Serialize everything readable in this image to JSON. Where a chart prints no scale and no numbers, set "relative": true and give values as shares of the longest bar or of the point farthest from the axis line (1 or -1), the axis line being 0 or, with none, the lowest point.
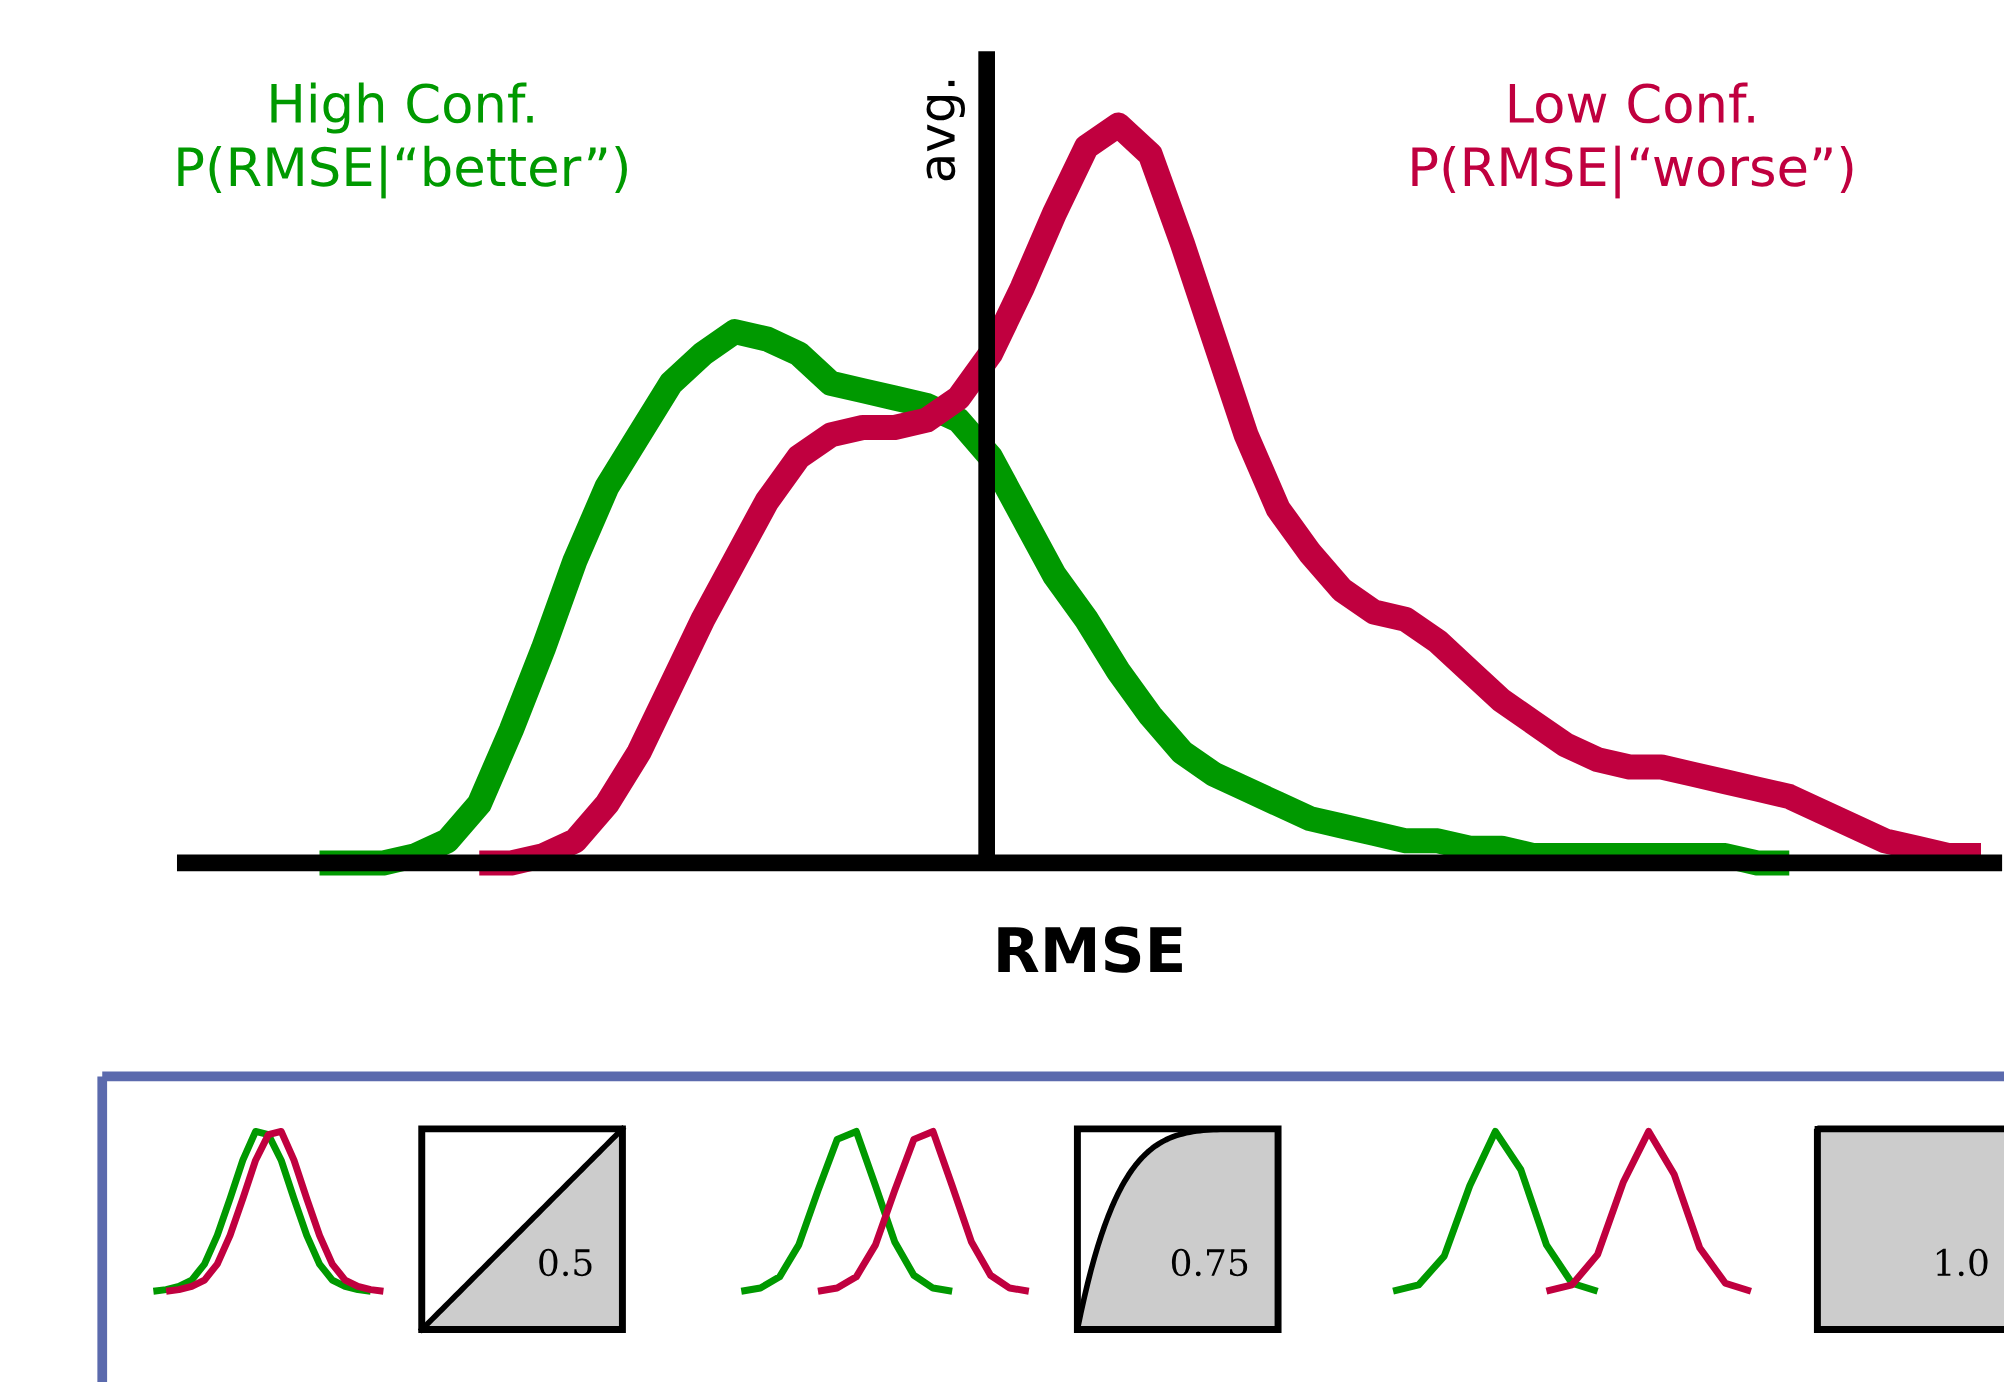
{
  "chart_data": [
    {
      "type": "line",
      "relative": true,
      "xlabel": "RMSE",
      "tick_labels": false,
      "annotations": [
        "avg."
      ],
      "categories": [
        null,
        null,
        null,
        null,
        null,
        null,
        null,
        null,
        null,
        null,
        null,
        null,
        null,
        null,
        null,
        null,
        null,
        null,
        null,
        null,
        null,
        null,
        null,
        null,
        null,
        null,
        null,
        null,
        null,
        null,
        null,
        null,
        null,
        null,
        null,
        null,
        null,
        null,
        null,
        null,
        null,
        null,
        null,
        null,
        null,
        null,
        null,
        null,
        null,
        null,
        null,
        null,
        null
      ],
      "series": [
        {
          "name": "High Conf.\nP(RMSE|“better”)",
          "color": "#009900",
          "values": [
            0,
            0,
            0.0,
            0.01,
            0.03,
            0.08,
            0.18,
            0.29,
            0.41,
            0.51,
            0.58,
            0.65,
            0.69,
            0.72,
            0.71,
            0.69,
            0.65,
            0.64,
            0.63,
            0.62,
            0.6,
            0.55,
            0.47,
            0.39,
            0.33,
            0.26,
            0.2,
            0.15,
            0.12,
            0.1,
            0.08,
            0.06,
            0.05,
            0.04,
            0.03,
            0.03,
            0.02,
            0.02,
            0.01,
            0.01,
            0.01,
            0.01,
            0.01,
            0.01,
            0.01,
            0.0,
            0.0,
            null,
            null,
            null,
            null,
            null,
            null
          ]
        },
        {
          "name": "Low Conf.\nP(RMSE|“worse”)",
          "color": "#c0003f",
          "values": [
            null,
            null,
            null,
            null,
            null,
            0,
            0.0,
            0.01,
            0.03,
            0.08,
            0.15,
            0.24,
            0.33,
            0.41,
            0.49,
            0.55,
            0.58,
            0.59,
            0.59,
            0.6,
            0.63,
            0.69,
            0.78,
            0.88,
            0.97,
            1.0,
            0.96,
            0.84,
            0.71,
            0.58,
            0.48,
            0.42,
            0.37,
            0.34,
            0.33,
            0.3,
            0.26,
            0.22,
            0.19,
            0.16,
            0.14,
            0.13,
            0.13,
            0.12,
            0.11,
            0.1,
            0.09,
            0.07,
            0.05,
            0.03,
            0.02,
            0.01,
            0.01
          ]
        }
      ]
    },
    {
      "type": "line",
      "relative": true,
      "tick_labels": false,
      "categories": [
        null,
        null,
        null,
        null,
        null,
        null,
        null,
        null,
        null,
        null,
        null,
        null,
        null,
        null,
        null,
        null,
        null,
        null,
        null
      ],
      "series": [
        {
          "color": "#009900",
          "values": [
            0,
            0.01,
            0.03,
            0.07,
            0.17,
            0.35,
            0.58,
            0.82,
            1.0,
            0.98,
            0.82,
            0.58,
            0.35,
            0.17,
            0.07,
            0.03,
            0.01,
            0,
            null
          ]
        },
        {
          "color": "#c0003f",
          "values": [
            null,
            0,
            0.01,
            0.03,
            0.07,
            0.17,
            0.35,
            0.58,
            0.82,
            0.98,
            1.0,
            0.82,
            0.58,
            0.35,
            0.17,
            0.07,
            0.03,
            0.01,
            0
          ]
        }
      ]
    },
    {
      "type": "line",
      "relative": true,
      "tick_labels": false,
      "categories": [
        null,
        null,
        null,
        null,
        null,
        null,
        null,
        null,
        null,
        null,
        null,
        null,
        null,
        null,
        null,
        null
      ],
      "series": [
        {
          "color": "#009900",
          "values": [
            0,
            0.02,
            0.09,
            0.29,
            0.63,
            0.95,
            1.0,
            0.66,
            0.31,
            0.1,
            0.02,
            0,
            null,
            null,
            null,
            null
          ]
        },
        {
          "color": "#c0003f",
          "values": [
            null,
            null,
            null,
            null,
            0,
            0.02,
            0.09,
            0.29,
            0.63,
            0.95,
            1.0,
            0.66,
            0.31,
            0.1,
            0.02,
            0
          ]
        }
      ]
    },
    {
      "type": "line",
      "relative": true,
      "tick_labels": false,
      "categories": [
        null,
        null,
        null,
        null,
        null,
        null,
        null,
        null,
        null,
        null,
        null,
        null,
        null,
        null,
        null
      ],
      "series": [
        {
          "color": "#009900",
          "values": [
            0,
            0.04,
            0.22,
            0.66,
            1.0,
            0.76,
            0.29,
            0.05,
            0,
            null,
            null,
            null,
            null,
            null,
            null
          ]
        },
        {
          "color": "#c0003f",
          "values": [
            null,
            null,
            null,
            null,
            null,
            null,
            0,
            0.04,
            0.23,
            0.68,
            1.0,
            0.73,
            0.27,
            0.05,
            0
          ]
        }
      ]
    },
    {
      "type": "other",
      "annotations": [
        "0.5",
        "0.75",
        "1.0"
      ]
    }
  ]
}
